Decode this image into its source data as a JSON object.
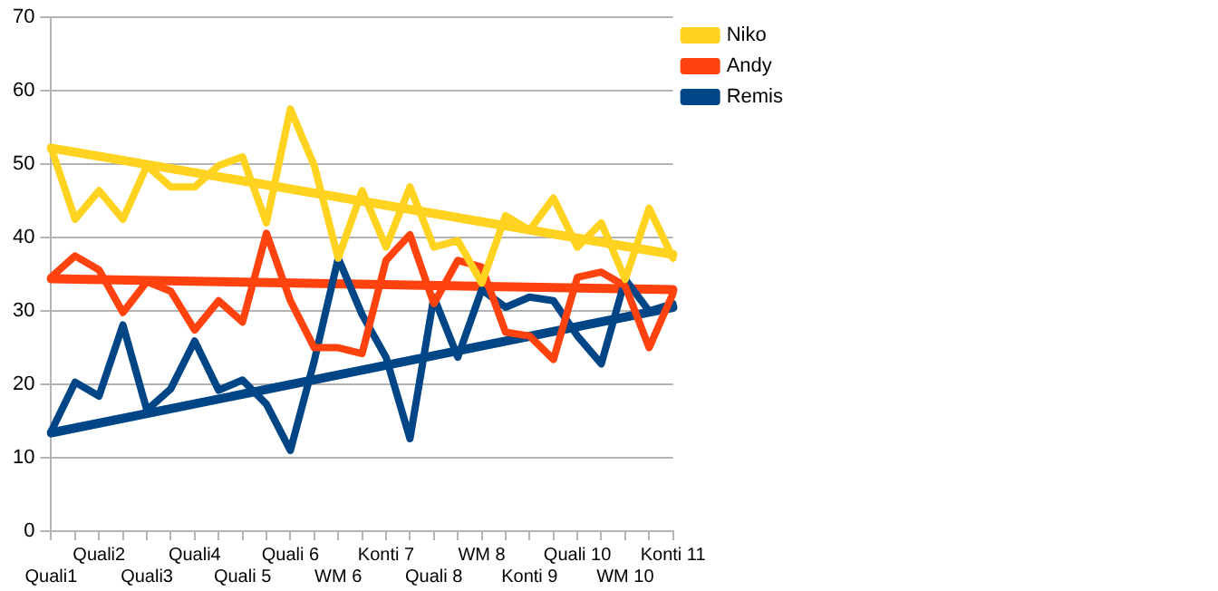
{
  "chart_data": {
    "type": "line",
    "categories": [
      "Quali1",
      null,
      "Quali2",
      null,
      "Quali3",
      null,
      "Quali4",
      null,
      "Quali 5",
      null,
      "Quali 6",
      null,
      "WM 6",
      null,
      "Konti 7",
      null,
      "Quali 8",
      null,
      "WM 8",
      null,
      "Konti 9",
      null,
      "Quali 10",
      null,
      "WM 10",
      null,
      "Konti 11"
    ],
    "series": [
      {
        "name": "Niko",
        "color": "#ffd320",
        "values": [
          52.2,
          42.5,
          46.4,
          42.5,
          49.8,
          46.9,
          46.9,
          49.8,
          51,
          42,
          57.5,
          49.8,
          37.2,
          46.4,
          38.7,
          46.9,
          38.7,
          39.6,
          33.8,
          43,
          41,
          45.4,
          38.7,
          42,
          34.3,
          44,
          37.2
        ]
      },
      {
        "name": "Andy",
        "color": "#ff420e",
        "values": [
          34.6,
          37.5,
          35.6,
          29.8,
          34,
          32.7,
          27.4,
          31.4,
          28.5,
          40.6,
          31.4,
          25,
          25,
          24.2,
          36.9,
          40.4,
          31,
          36.9,
          36,
          27.1,
          26.6,
          23.4,
          34.6,
          35.3,
          33.4,
          25,
          32.4
        ]
      },
      {
        "name": "Remis",
        "color": "#004586",
        "values": [
          13.6,
          20.3,
          18.4,
          28.1,
          16.5,
          19.4,
          25.9,
          19.2,
          20.6,
          17.3,
          11,
          23.2,
          37.2,
          29.5,
          23.7,
          12.6,
          31.9,
          23.7,
          32.9,
          30.5,
          31.9,
          31.4,
          26.6,
          22.8,
          34.3,
          30,
          31
        ]
      },
      {
        "type": "line",
        "color": "#ffd320",
        "values": [
          52.2,
          null,
          null,
          null,
          null,
          null,
          null,
          null,
          null,
          null,
          null,
          null,
          null,
          null,
          null,
          null,
          null,
          null,
          null,
          null,
          null,
          null,
          null,
          null,
          null,
          null,
          37.7
        ]
      },
      {
        "type": "line",
        "color": "#ff420e",
        "values": [
          34.4,
          null,
          null,
          null,
          null,
          null,
          null,
          null,
          null,
          null,
          null,
          null,
          null,
          null,
          null,
          null,
          null,
          null,
          null,
          null,
          null,
          null,
          null,
          null,
          null,
          null,
          32.9
        ]
      },
      {
        "type": "line",
        "color": "#004586",
        "values": [
          13.4,
          null,
          null,
          null,
          null,
          null,
          null,
          null,
          null,
          null,
          null,
          null,
          null,
          null,
          null,
          null,
          null,
          null,
          null,
          null,
          null,
          null,
          null,
          null,
          null,
          null,
          30.5
        ]
      }
    ],
    "ylim": [
      0,
      70
    ],
    "yticks": [
      0,
      10,
      20,
      30,
      40,
      50,
      60,
      70
    ],
    "grid": "y",
    "legend": "right",
    "marker": "none",
    "line_style": "solid"
  }
}
